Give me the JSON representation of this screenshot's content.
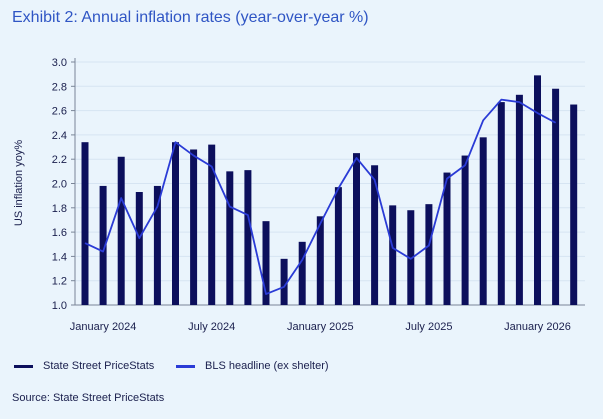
{
  "title": "Exhibit 2: Annual inflation rates (year-over-year %)",
  "source": "Source: State Street PriceStats",
  "chart_data": {
    "type": "bar",
    "title": "Exhibit 2: Annual inflation rates (year-over-year %)",
    "xlabel": "",
    "ylabel": "US inflation yoy%",
    "ylim": [
      1.0,
      3.0
    ],
    "yticks": [
      "1.0",
      "1.2",
      "1.4",
      "1.6",
      "1.8",
      "2.0",
      "2.2",
      "2.4",
      "2.6",
      "2.8",
      "3.0"
    ],
    "grid": true,
    "legend_position": "bottom",
    "x": [
      "2023-12",
      "2024-01",
      "2024-02",
      "2024-03",
      "2024-04",
      "2024-05",
      "2024-06",
      "2024-07",
      "2024-08",
      "2024-09",
      "2024-10",
      "2024-11",
      "2024-12",
      "2025-01",
      "2025-02",
      "2025-03",
      "2025-04",
      "2025-05",
      "2025-06",
      "2025-07",
      "2025-08",
      "2025-09",
      "2025-10",
      "2025-11",
      "2025-12",
      "2026-01",
      "2026-02",
      "2026-03"
    ],
    "xtick_labels": [
      {
        "label": "January 2024",
        "x": "2024-01"
      },
      {
        "label": "July 2024",
        "x": "2024-07"
      },
      {
        "label": "January 2025",
        "x": "2025-01"
      },
      {
        "label": "July 2025",
        "x": "2025-07"
      },
      {
        "label": "January 2026",
        "x": "2026-01"
      }
    ],
    "series": [
      {
        "name": "State Street PriceStats",
        "type": "bar",
        "color": "#0c0f5c",
        "values": [
          2.34,
          1.98,
          2.22,
          1.93,
          1.98,
          2.34,
          2.28,
          2.32,
          2.1,
          2.11,
          1.69,
          1.38,
          1.52,
          1.73,
          1.97,
          2.25,
          2.15,
          1.82,
          1.78,
          1.83,
          2.09,
          2.23,
          2.38,
          2.67,
          2.73,
          2.89,
          2.78,
          2.65
        ]
      },
      {
        "name": "BLS headline (ex shelter)",
        "type": "line",
        "color": "#2a3bd6",
        "values": [
          1.51,
          1.44,
          1.88,
          1.55,
          1.81,
          2.34,
          2.23,
          2.14,
          1.81,
          1.74,
          1.09,
          1.15,
          1.37,
          1.67,
          1.96,
          2.21,
          2.03,
          1.47,
          1.38,
          1.49,
          2.04,
          2.15,
          2.52,
          2.69,
          2.67,
          2.58,
          2.5,
          null
        ]
      }
    ]
  }
}
